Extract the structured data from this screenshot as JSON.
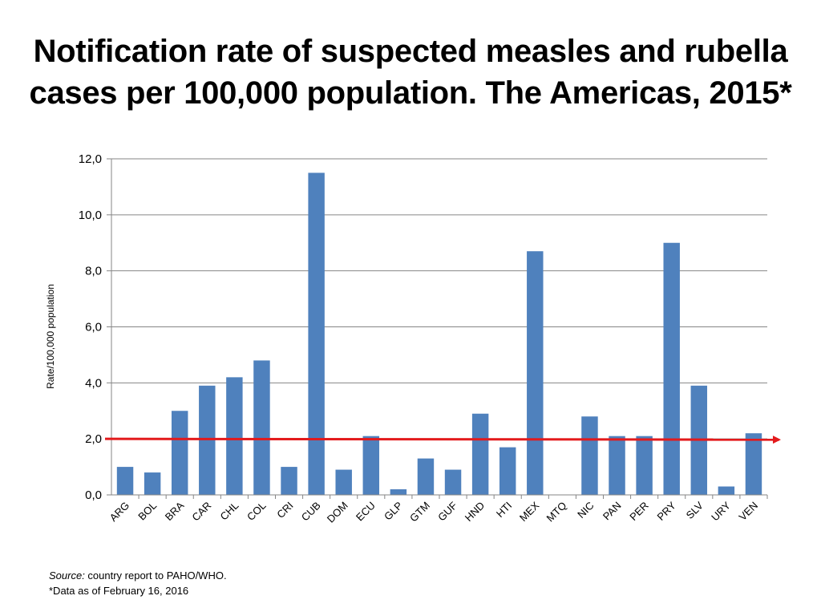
{
  "title": {
    "line1": "Notification rate of suspected measles and rubella",
    "line2": "cases per 100,000 population. The Americas, 2015*"
  },
  "chart_data": {
    "type": "bar",
    "title": "Notification rate of suspected measles and rubella cases per 100,000 population. The Americas, 2015*",
    "xlabel": "",
    "ylabel": "Rate/100,000 population",
    "ylim": [
      0,
      12
    ],
    "yticks": [
      "0,0",
      "2,0",
      "4,0",
      "6,0",
      "8,0",
      "10,0",
      "12,0"
    ],
    "grid": true,
    "categories": [
      "ARG",
      "BOL",
      "BRA",
      "CAR",
      "CHL",
      "COL",
      "CRI",
      "CUB",
      "DOM",
      "ECU",
      "GLP",
      "GTM",
      "GUF",
      "HND",
      "HTI",
      "MEX",
      "MTQ",
      "NIC",
      "PAN",
      "PER",
      "PRY",
      "SLV",
      "URY",
      "VEN"
    ],
    "values": [
      1.0,
      0.8,
      3.0,
      3.9,
      4.2,
      4.8,
      1.0,
      11.5,
      0.9,
      2.1,
      0.2,
      1.3,
      0.9,
      2.9,
      1.7,
      8.7,
      0.0,
      2.8,
      2.1,
      2.1,
      9.0,
      3.9,
      0.3,
      2.2
    ],
    "reference_line": {
      "value": 2.0,
      "style": "arrow"
    },
    "colors": {
      "bar": "#4f81bd",
      "reference_line": "#e31a1c",
      "grid": "#868686",
      "axis": "#868686"
    }
  },
  "footnote": {
    "source_label": "Source:",
    "source_text": " country report to PAHO/WHO.",
    "data_note": "*Data as of February 16, 2016"
  }
}
